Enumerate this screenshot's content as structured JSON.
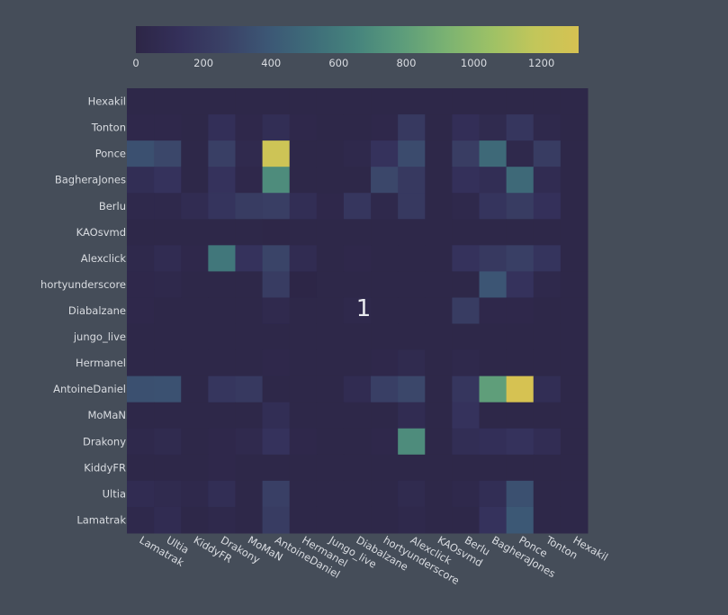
{
  "chart_data": {
    "type": "heatmap",
    "title": "",
    "xlabel": "",
    "ylabel": "",
    "x_categories": [
      "Lamatrak",
      "Ultia",
      "KiddyFR",
      "Drakony",
      "MoMaN",
      "AntoineDaniel",
      "Hermanel",
      "Jungo_live",
      "Diabalzane",
      "hortyunderscore",
      "Alexclick",
      "KAOsvmd",
      "Berlu",
      "BagheraJones",
      "Ponce",
      "Tonton",
      "Hexakil"
    ],
    "y_categories": [
      "Hexakil",
      "Tonton",
      "Ponce",
      "BagheraJones",
      "Berlu",
      "KAOsvmd",
      "Alexclick",
      "hortyunderscore",
      "Diabalzane",
      "jungo_live",
      "Hermanel",
      "AntoineDaniel",
      "MoMaN",
      "Drakony",
      "KiddyFR",
      "Ultia",
      "Lamatrak"
    ],
    "z": [
      [
        20,
        20,
        20,
        20,
        20,
        20,
        20,
        20,
        20,
        20,
        20,
        20,
        20,
        20,
        20,
        20,
        20
      ],
      [
        30,
        30,
        20,
        120,
        30,
        100,
        30,
        20,
        20,
        30,
        200,
        20,
        110,
        60,
        180,
        40,
        20
      ],
      [
        350,
        300,
        20,
        250,
        50,
        1250,
        20,
        20,
        40,
        150,
        320,
        20,
        230,
        500,
        40,
        220,
        20
      ],
      [
        100,
        150,
        20,
        150,
        30,
        700,
        20,
        20,
        20,
        300,
        200,
        20,
        130,
        100,
        500,
        80,
        20
      ],
      [
        40,
        40,
        80,
        160,
        220,
        240,
        100,
        30,
        180,
        40,
        200,
        20,
        40,
        160,
        220,
        130,
        20
      ],
      [
        20,
        20,
        20,
        20,
        20,
        10,
        20,
        20,
        20,
        20,
        20,
        20,
        20,
        20,
        20,
        20,
        20
      ],
      [
        40,
        80,
        30,
        580,
        150,
        280,
        80,
        20,
        30,
        20,
        20,
        20,
        150,
        200,
        250,
        160,
        20
      ],
      [
        30,
        40,
        20,
        20,
        20,
        220,
        5,
        20,
        20,
        20,
        20,
        20,
        20,
        380,
        150,
        40,
        20
      ],
      [
        30,
        20,
        20,
        20,
        20,
        50,
        20,
        20,
        40,
        20,
        20,
        20,
        220,
        30,
        30,
        20,
        20
      ],
      [
        20,
        20,
        20,
        20,
        20,
        20,
        20,
        20,
        20,
        20,
        20,
        20,
        20,
        20,
        20,
        20,
        20
      ],
      [
        20,
        20,
        20,
        20,
        20,
        30,
        20,
        20,
        20,
        30,
        60,
        20,
        40,
        20,
        20,
        20,
        20
      ],
      [
        350,
        360,
        20,
        180,
        200,
        20,
        20,
        20,
        80,
        250,
        300,
        20,
        180,
        800,
        1350,
        100,
        20
      ],
      [
        20,
        20,
        20,
        20,
        20,
        100,
        20,
        20,
        20,
        20,
        80,
        20,
        150,
        20,
        20,
        20,
        20
      ],
      [
        40,
        60,
        20,
        30,
        50,
        150,
        30,
        20,
        20,
        30,
        700,
        20,
        100,
        120,
        150,
        90,
        20
      ],
      [
        20,
        20,
        20,
        30,
        20,
        20,
        20,
        20,
        20,
        20,
        20,
        20,
        20,
        20,
        20,
        20,
        20
      ],
      [
        80,
        60,
        40,
        100,
        20,
        250,
        20,
        20,
        20,
        20,
        60,
        20,
        40,
        100,
        350,
        20,
        20
      ],
      [
        40,
        80,
        20,
        40,
        20,
        220,
        20,
        20,
        20,
        20,
        40,
        20,
        20,
        150,
        400,
        20,
        20
      ]
    ],
    "colorbar": {
      "ticks": [
        0,
        200,
        400,
        600,
        800,
        1000,
        1200
      ],
      "range": [
        0,
        1310
      ]
    },
    "colors": {
      "low": "#2d2646",
      "stops": [
        "#2d2646",
        "#34305a",
        "#3a4166",
        "#3c5775",
        "#3e6d79",
        "#46847d",
        "#5c9c7b",
        "#7ab272",
        "#9cc166",
        "#c2c65a",
        "#d6c252"
      ]
    },
    "annotation": "1",
    "grid": false,
    "colorbar_position": "top"
  }
}
